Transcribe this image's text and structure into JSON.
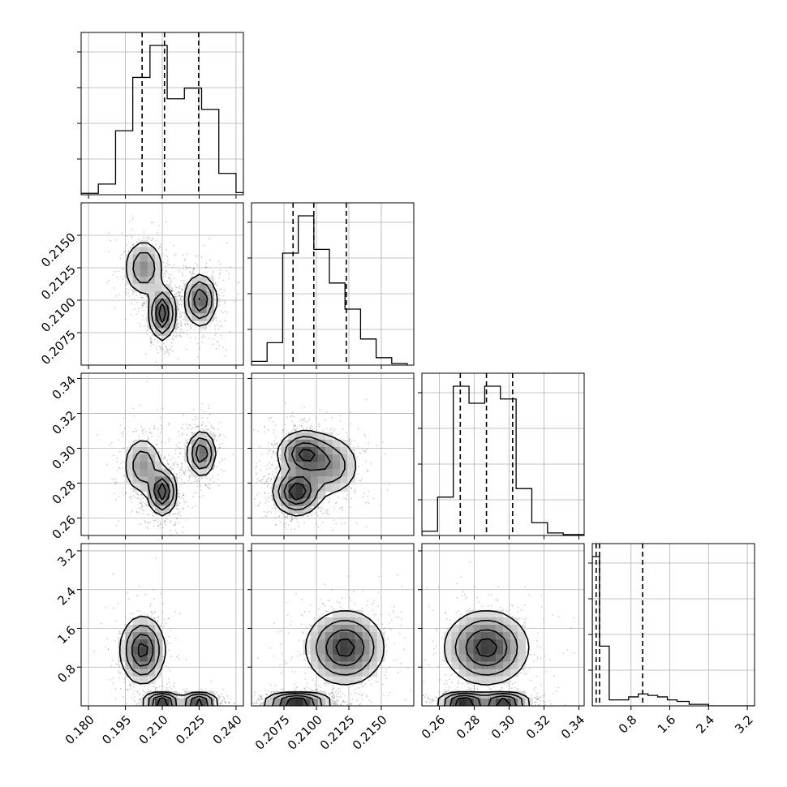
{
  "chart_data": {
    "type": "corner",
    "title": "",
    "grid": true,
    "grid_color": "#b0b0b0",
    "params": [
      {
        "index": 0,
        "range": [
          0.177,
          0.243
        ],
        "ticks": [
          "0.180",
          "0.195",
          "0.210",
          "0.225",
          "0.240"
        ],
        "tick_values": [
          0.18,
          0.195,
          0.21,
          0.225,
          0.24
        ],
        "quantiles": [
          0.2018,
          0.2109,
          0.2248
        ]
      },
      {
        "index": 1,
        "range": [
          0.205,
          0.2175
        ],
        "ticks": [
          "0.2075",
          "0.2100",
          "0.2125",
          "0.2150"
        ],
        "tick_values": [
          0.2075,
          0.21,
          0.2125,
          0.215
        ],
        "quantiles": [
          0.2082,
          0.2098,
          0.2123
        ]
      },
      {
        "index": 2,
        "range": [
          0.25,
          0.343
        ],
        "ticks": [
          "0.26",
          "0.28",
          "0.30",
          "0.32",
          "0.34"
        ],
        "tick_values": [
          0.26,
          0.28,
          0.3,
          0.32,
          0.34
        ],
        "quantiles": [
          0.272,
          0.287,
          0.302
        ]
      },
      {
        "index": 3,
        "range": [
          0.0,
          3.35
        ],
        "ticks": [
          "0.8",
          "1.6",
          "2.4",
          "3.2"
        ],
        "tick_values": [
          0.8,
          1.6,
          2.4,
          3.2
        ],
        "quantiles": [
          0.08,
          0.15,
          1.04
        ]
      }
    ],
    "histograms": [
      {
        "param": 0,
        "bin_edges": [
          0.177,
          0.184,
          0.191,
          0.198,
          0.205,
          0.212,
          0.219,
          0.226,
          0.233,
          0.24,
          0.243
        ],
        "counts": [
          2,
          15,
          90,
          165,
          210,
          135,
          150,
          120,
          30,
          3
        ]
      },
      {
        "param": 1,
        "bin_edges": [
          0.205,
          0.2062,
          0.2074,
          0.2086,
          0.2098,
          0.211,
          0.2122,
          0.2134,
          0.2146,
          0.2158,
          0.217
        ],
        "counts": [
          5,
          30,
          150,
          200,
          155,
          110,
          75,
          35,
          10,
          2
        ]
      },
      {
        "param": 2,
        "bin_edges": [
          0.25,
          0.259,
          0.268,
          0.277,
          0.286,
          0.295,
          0.304,
          0.313,
          0.322,
          0.331,
          0.343
        ],
        "counts": [
          5,
          45,
          175,
          155,
          175,
          160,
          55,
          15,
          3,
          1
        ]
      },
      {
        "param": 3,
        "bin_edges": [
          0.0,
          0.15,
          0.35,
          0.55,
          0.75,
          0.95,
          1.15,
          1.35,
          1.55,
          1.75,
          2.0,
          2.4,
          3.35
        ],
        "counts": [
          100,
          40,
          4,
          4,
          6,
          8,
          7,
          6,
          4,
          3,
          1,
          0
        ]
      }
    ],
    "pairs": [
      {
        "x": 0,
        "y": 1,
        "modes": [
          {
            "cx": 0.21,
            "cy": 0.209,
            "sx": 0.0025,
            "sy": 0.001,
            "w": 1.0
          },
          {
            "cx": 0.2255,
            "cy": 0.21,
            "sx": 0.0033,
            "sy": 0.001,
            "w": 0.8
          },
          {
            "cx": 0.2025,
            "cy": 0.2125,
            "sx": 0.004,
            "sy": 0.0011,
            "w": 0.55
          }
        ]
      },
      {
        "x": 0,
        "y": 2,
        "modes": [
          {
            "cx": 0.21,
            "cy": 0.275,
            "sx": 0.0028,
            "sy": 0.0065,
            "w": 1.0
          },
          {
            "cx": 0.226,
            "cy": 0.297,
            "sx": 0.0028,
            "sy": 0.0065,
            "w": 0.8
          },
          {
            "cx": 0.202,
            "cy": 0.29,
            "sx": 0.004,
            "sy": 0.0085,
            "w": 0.5
          }
        ]
      },
      {
        "x": 1,
        "y": 2,
        "modes": [
          {
            "cx": 0.2085,
            "cy": 0.275,
            "sx": 0.0009,
            "sy": 0.0065,
            "w": 1.0
          },
          {
            "cx": 0.209,
            "cy": 0.297,
            "sx": 0.001,
            "sy": 0.0065,
            "w": 0.8
          },
          {
            "cx": 0.211,
            "cy": 0.29,
            "sx": 0.0012,
            "sy": 0.009,
            "w": 0.5
          }
        ]
      },
      {
        "x": 0,
        "y": 3,
        "modes": [
          {
            "cx": 0.202,
            "cy": 1.15,
            "sx": 0.0045,
            "sy": 0.35,
            "w": 0.6
          },
          {
            "cx": 0.21,
            "cy": 0.07,
            "sx": 0.0035,
            "sy": 0.08,
            "w": 1.0
          },
          {
            "cx": 0.225,
            "cy": 0.07,
            "sx": 0.0035,
            "sy": 0.08,
            "w": 0.9
          }
        ]
      },
      {
        "x": 1,
        "y": 3,
        "modes": [
          {
            "cx": 0.2122,
            "cy": 1.2,
            "sx": 0.0015,
            "sy": 0.38,
            "w": 0.6
          },
          {
            "cx": 0.2085,
            "cy": 0.07,
            "sx": 0.0012,
            "sy": 0.08,
            "w": 1.0
          }
        ]
      },
      {
        "x": 2,
        "y": 3,
        "modes": [
          {
            "cx": 0.287,
            "cy": 1.2,
            "sx": 0.012,
            "sy": 0.38,
            "w": 0.6
          },
          {
            "cx": 0.274,
            "cy": 0.07,
            "sx": 0.007,
            "sy": 0.08,
            "w": 1.0
          },
          {
            "cx": 0.297,
            "cy": 0.07,
            "sx": 0.007,
            "sy": 0.08,
            "w": 0.9
          }
        ]
      }
    ]
  }
}
